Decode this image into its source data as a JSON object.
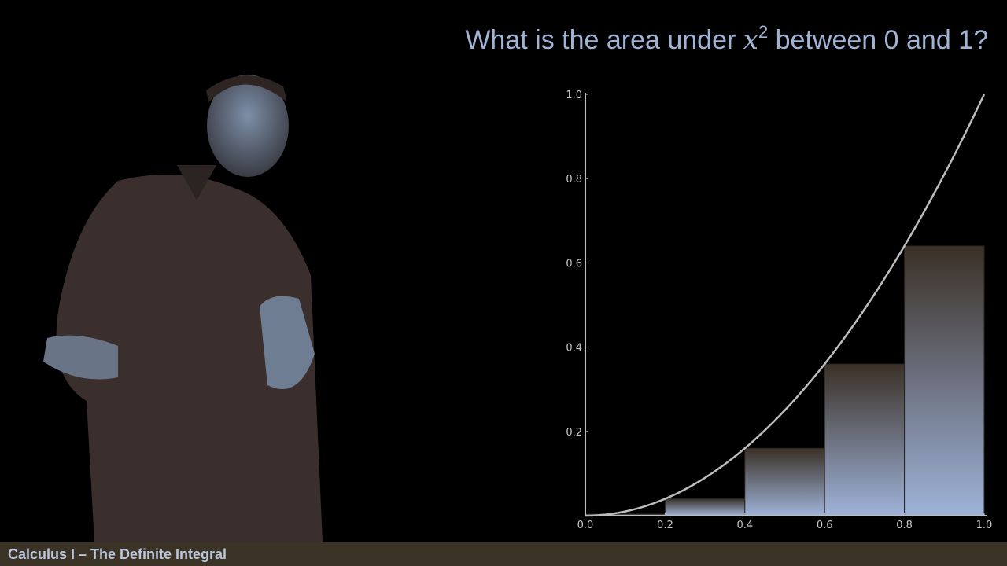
{
  "title": {
    "prefix": "What is the area under ",
    "variable": "x",
    "exponent": "2",
    "suffix": " between 0 and 1?"
  },
  "footer": {
    "caption": "Calculus I – The Definite Integral"
  },
  "colors": {
    "title": "#9fb3d4",
    "curve": "#bdbdbd",
    "bar_top": "#3a3026",
    "bar_bottom": "#9fb3d9",
    "footer_bg": "#3b3326"
  },
  "chart_data": {
    "type": "bar",
    "function": "x^2",
    "x_ticks": [
      "0.0",
      "0.2",
      "0.4",
      "0.6",
      "0.8",
      "1.0"
    ],
    "y_ticks": [
      "0.2",
      "0.4",
      "0.6",
      "0.8",
      "1.0"
    ],
    "xlim": [
      0,
      1
    ],
    "ylim": [
      0,
      1
    ],
    "bars": [
      {
        "x0": 0.0,
        "x1": 0.2,
        "value": 0.0
      },
      {
        "x0": 0.2,
        "x1": 0.4,
        "value": 0.04
      },
      {
        "x0": 0.4,
        "x1": 0.6,
        "value": 0.16
      },
      {
        "x0": 0.6,
        "x1": 0.8,
        "value": 0.36
      },
      {
        "x0": 0.8,
        "x1": 1.0,
        "value": 0.64
      }
    ],
    "curve": {
      "domain": [
        0,
        1
      ],
      "label": ""
    },
    "grid": false
  }
}
